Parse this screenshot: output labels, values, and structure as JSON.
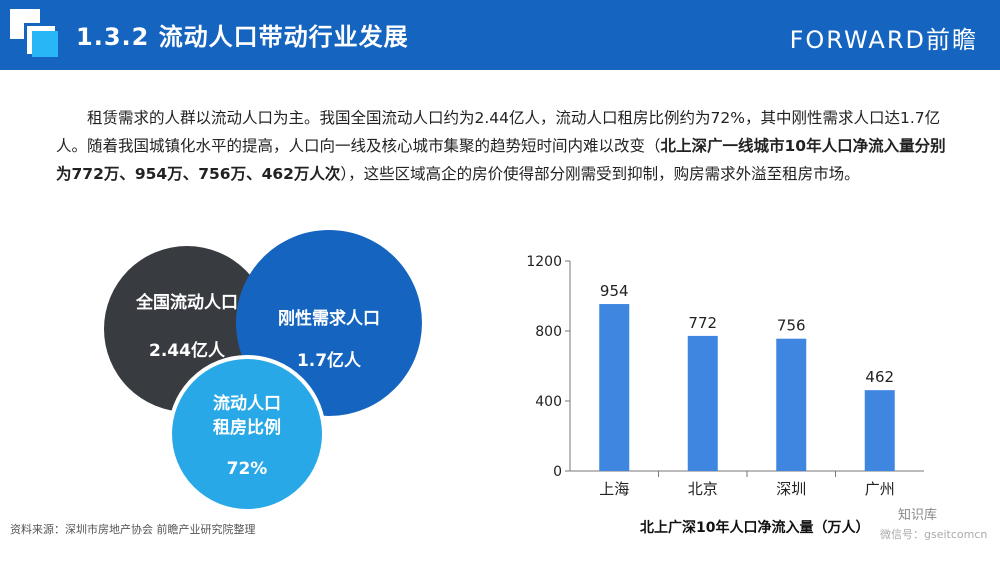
{
  "header": {
    "title": "1.3.2 流动人口带动行业发展",
    "brand": "FORWARD前瞻"
  },
  "paragraph": {
    "part1": "租赁需求的人群以流动人口为主。我国全国流动人口约为2.44亿人，流动人口租房比例约为72%，其中刚性需求人口达1.7亿人。随着我国城镇化水平的提高，人口向一线及核心城市集聚的趋势短时间内难以改变（",
    "bold": "北上深广一线城市10年人口净流入量分别为772万、954万、756万、462万人次",
    "part2": "），这些区域高企的房价使得部分刚需受到抑制，购房需求外溢至租房市场。"
  },
  "circles": {
    "national": {
      "label": "全国流动人口",
      "value": "2.44亿人",
      "color": "#383b40"
    },
    "rigid": {
      "label": "刚性需求人口",
      "value": "1.7亿人",
      "color": "#1565c0"
    },
    "rental": {
      "label_line1": "流动人口",
      "label_line2": "租房比例",
      "value": "72%",
      "color": "#29a8e8"
    }
  },
  "source": "资料来源：深圳市房地产协会 前瞻产业研究院整理",
  "chart_data": {
    "type": "bar",
    "categories": [
      "上海",
      "北京",
      "深圳",
      "广州"
    ],
    "values": [
      954,
      772,
      756,
      462
    ],
    "title": "北上广深10年人口净流入量（万人）",
    "xlabel": "",
    "ylabel": "",
    "ylim": [
      0,
      1200
    ],
    "yticks": [
      0,
      400,
      800,
      1200
    ],
    "grid": false,
    "bar_color": "#3f86e0"
  },
  "watermark": {
    "wechat": "知识库",
    "wechat_id": "微信号：gseitcomcn"
  }
}
